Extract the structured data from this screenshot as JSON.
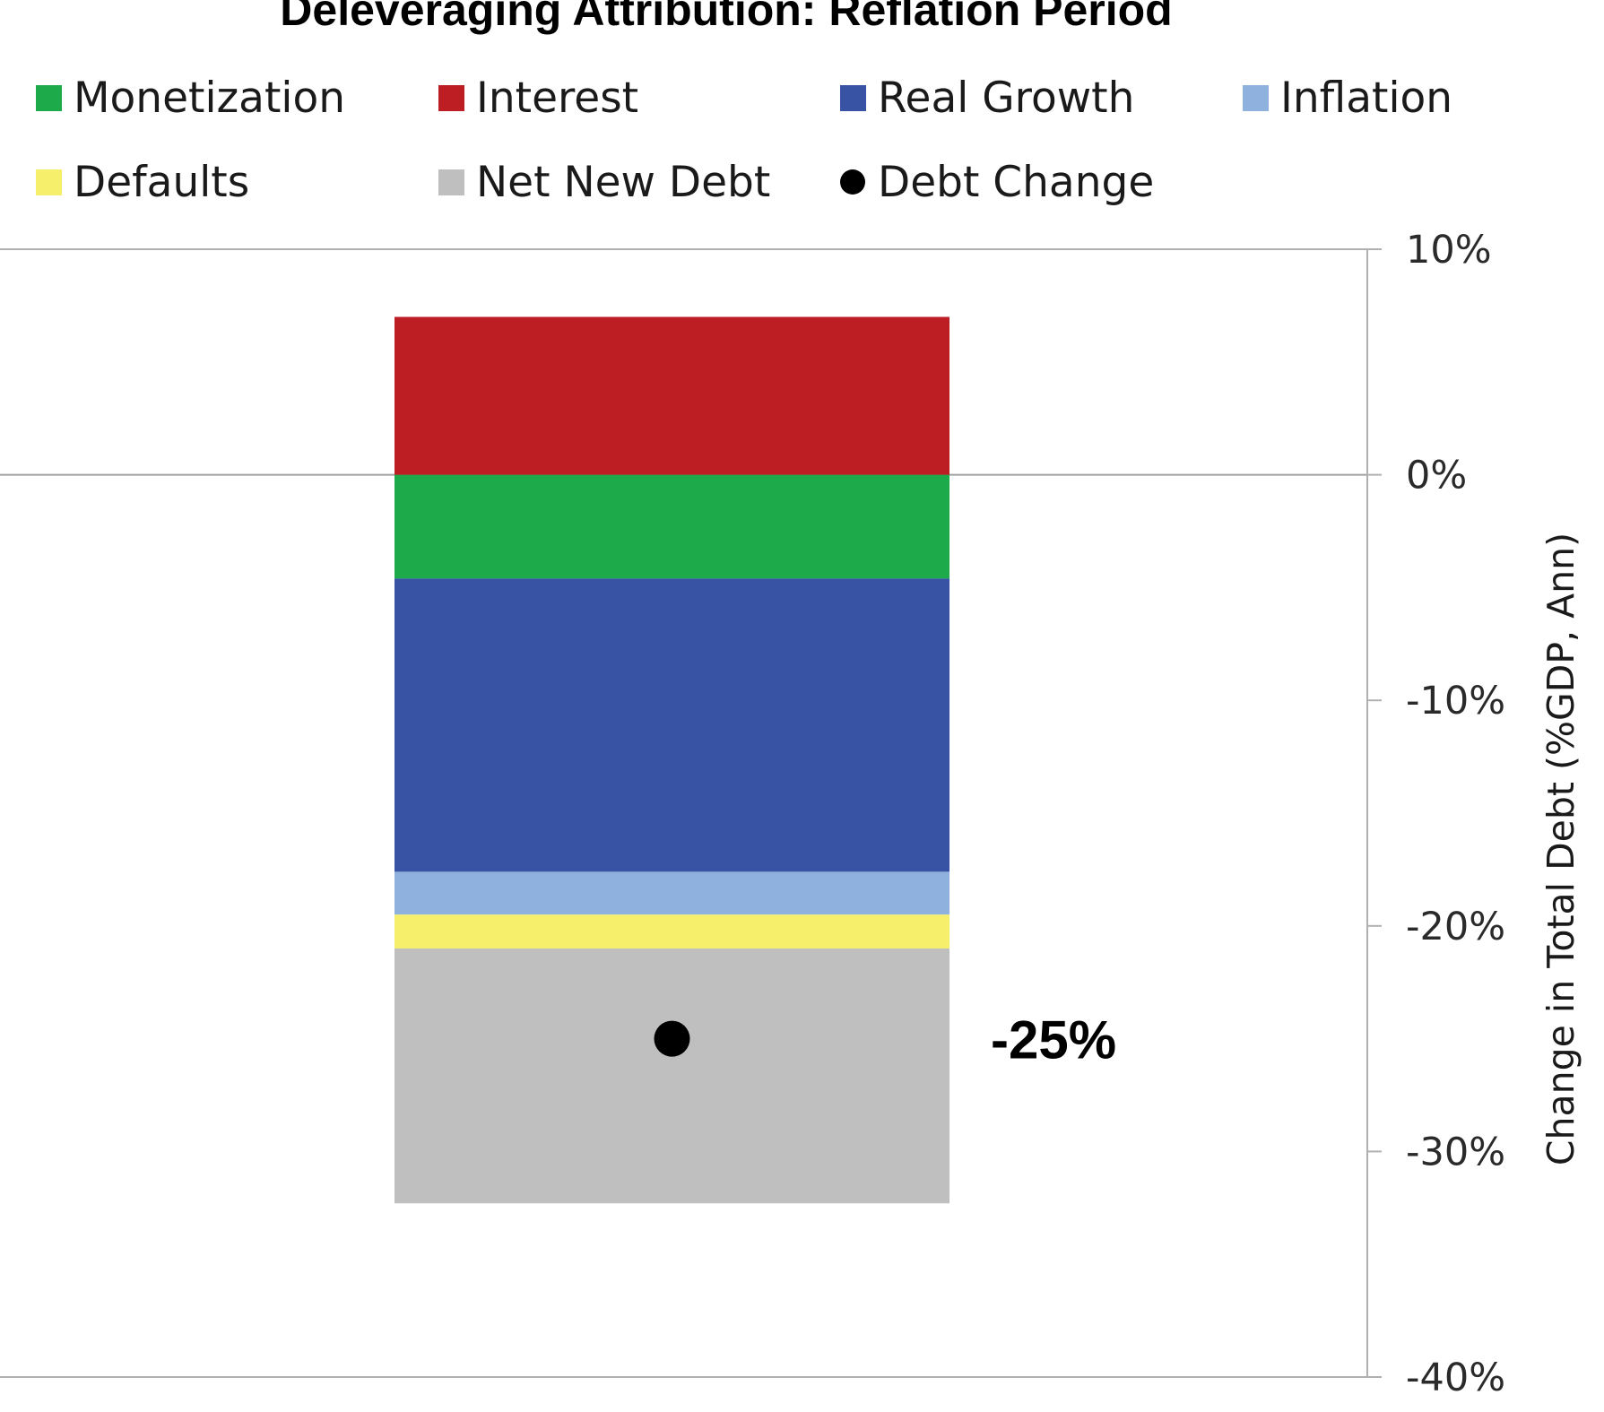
{
  "chart_data": {
    "type": "bar",
    "title": "Deleveraging Attribution: Reflation Period",
    "xlabel": "",
    "ylabel": "Change in Total Debt (%GDP, Ann)",
    "ylim": [
      -40,
      10
    ],
    "yticks": [
      10,
      0,
      -10,
      -20,
      -30,
      -40
    ],
    "ytick_labels": [
      "10%",
      "0%",
      "-10%",
      "-20%",
      "-30%",
      "-40%"
    ],
    "y_axis_side": "right",
    "grid": false,
    "legend_position": "top",
    "stacked": true,
    "series": [
      {
        "name": "Monetization",
        "values": [
          -4.6
        ],
        "color": "#1daa4a"
      },
      {
        "name": "Interest",
        "values": [
          7.0
        ],
        "color": "#bd1e24"
      },
      {
        "name": "Real Growth",
        "values": [
          -13.0
        ],
        "color": "#3853a4"
      },
      {
        "name": "Inflation",
        "values": [
          -1.9
        ],
        "color": "#8fb1de"
      },
      {
        "name": "Defaults",
        "values": [
          -1.5
        ],
        "color": "#f6ef6b"
      },
      {
        "name": "Net New Debt",
        "values": [
          -11.3
        ],
        "color": "#bfbfbf"
      }
    ],
    "markers": [
      {
        "name": "Debt Change",
        "value": -25,
        "label": "-25%",
        "color": "#000000"
      }
    ]
  }
}
